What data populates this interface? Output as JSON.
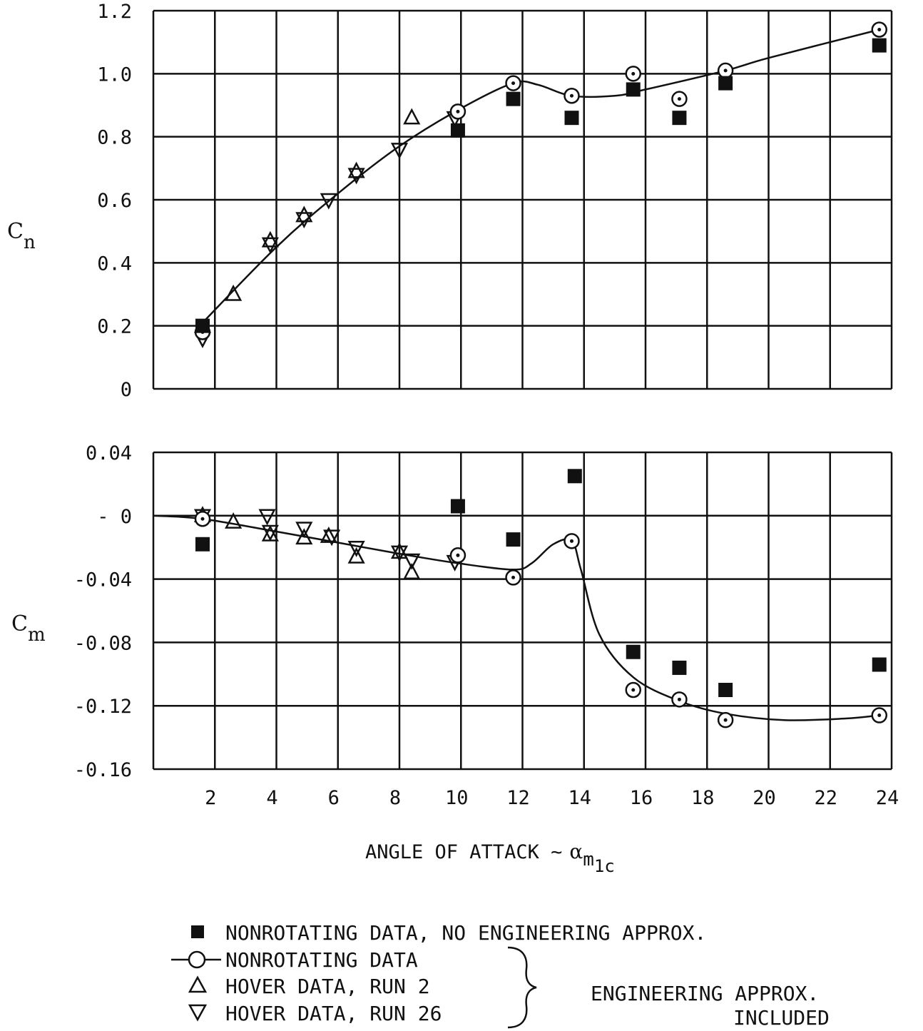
{
  "chart_data": [
    {
      "type": "scatter",
      "panel": "upper",
      "ylabel": "C",
      "ylabel_sub": "n",
      "xlim": [
        0,
        24
      ],
      "ylim": [
        0,
        1.2
      ],
      "grid": true,
      "x_ticks": [
        2,
        4,
        6,
        8,
        10,
        12,
        14,
        16,
        18,
        20,
        22,
        24
      ],
      "y_ticks": [
        {
          "value": 0,
          "label": "0"
        },
        {
          "value": 0.2,
          "label": "0.2"
        },
        {
          "value": 0.4,
          "label": "0.4"
        },
        {
          "value": 0.6,
          "label": "0.6"
        },
        {
          "value": 0.8,
          "label": "0.8"
        },
        {
          "value": 1.0,
          "label": "1.0"
        },
        {
          "value": 1.2,
          "label": "1.2"
        }
      ],
      "series": [
        {
          "name": "NONROTATING DATA, NO ENGINEERING APPROX.",
          "marker": "filled-square",
          "x": [
            1.6,
            9.9,
            11.7,
            13.6,
            15.6,
            17.1,
            18.6,
            23.6
          ],
          "y": [
            0.2,
            0.82,
            0.92,
            0.86,
            0.95,
            0.86,
            0.97,
            1.09
          ]
        },
        {
          "name": "NONROTATING DATA",
          "marker": "dotted-circle",
          "line": true,
          "x": [
            1.6,
            9.9,
            11.7,
            13.6,
            15.6,
            17.1,
            18.6,
            23.6
          ],
          "y": [
            0.18,
            0.88,
            0.97,
            0.93,
            1.0,
            0.92,
            1.01,
            1.14
          ]
        },
        {
          "name": "HOVER DATA, RUN 2",
          "marker": "triangle-up",
          "x": [
            2.6,
            3.8,
            4.9,
            6.6,
            8.4
          ],
          "y": [
            0.3,
            0.47,
            0.55,
            0.69,
            0.86
          ]
        },
        {
          "name": "HOVER DATA, RUN 26",
          "marker": "triangle-down",
          "x": [
            1.6,
            3.8,
            4.9,
            5.7,
            6.6,
            8.0,
            9.8
          ],
          "y": [
            0.16,
            0.46,
            0.54,
            0.6,
            0.68,
            0.76,
            0.86
          ]
        }
      ],
      "fit_curve": {
        "x": [
          1.6,
          4,
          6,
          8,
          10,
          11.7,
          12.5,
          13.6,
          15,
          16,
          18.6,
          20,
          23.6
        ],
        "y": [
          0.21,
          0.45,
          0.62,
          0.77,
          0.89,
          0.97,
          0.965,
          0.93,
          0.93,
          0.95,
          1.01,
          1.05,
          1.14
        ]
      }
    },
    {
      "type": "scatter",
      "panel": "lower",
      "ylabel": "C",
      "ylabel_sub": "m",
      "xlabel": "ANGLE OF ATTACK ~",
      "xlabel_symbol": "α",
      "xlabel_sub": "m",
      "xlabel_subsub": "1c",
      "xlim": [
        0,
        24
      ],
      "ylim": [
        -0.16,
        0.04
      ],
      "grid": true,
      "x_ticks": [
        2,
        4,
        6,
        8,
        10,
        12,
        14,
        16,
        18,
        20,
        22,
        24
      ],
      "y_ticks": [
        {
          "value": 0.04,
          "label": "0.04"
        },
        {
          "value": 0,
          "label": "-  0"
        },
        {
          "value": -0.04,
          "label": "-0.04"
        },
        {
          "value": -0.08,
          "label": "-0.08"
        },
        {
          "value": -0.12,
          "label": "-0.12"
        },
        {
          "value": -0.16,
          "label": "-0.16"
        }
      ],
      "series": [
        {
          "name": "NONROTATING DATA, NO ENGINEERING APPROX.",
          "marker": "filled-square",
          "x": [
            1.6,
            9.9,
            11.7,
            13.7,
            15.6,
            17.1,
            18.6,
            23.6
          ],
          "y": [
            -0.018,
            0.006,
            -0.015,
            0.025,
            -0.086,
            -0.096,
            -0.11,
            -0.094
          ]
        },
        {
          "name": "NONROTATING DATA",
          "marker": "dotted-circle",
          "line": true,
          "x": [
            1.6,
            9.9,
            11.7,
            13.6,
            15.6,
            17.1,
            18.6,
            23.6
          ],
          "y": [
            -0.002,
            -0.025,
            -0.039,
            -0.016,
            -0.11,
            -0.116,
            -0.129,
            -0.126
          ]
        },
        {
          "name": "HOVER DATA, RUN 2",
          "marker": "triangle-up",
          "x": [
            1.6,
            2.6,
            3.8,
            4.9,
            5.7,
            6.6,
            8.0,
            8.4
          ],
          "y": [
            0.0,
            -0.004,
            -0.012,
            -0.014,
            -0.013,
            -0.026,
            -0.023,
            -0.036
          ]
        },
        {
          "name": "HOVER DATA, RUN 26",
          "marker": "triangle-down",
          "x": [
            1.6,
            3.7,
            3.8,
            4.9,
            5.8,
            6.6,
            8.0,
            8.4,
            9.8
          ],
          "y": [
            0.0,
            0.0,
            -0.01,
            -0.008,
            -0.013,
            -0.02,
            -0.023,
            -0.028,
            -0.029
          ]
        }
      ],
      "fit_curve": {
        "x": [
          0,
          1.6,
          4,
          6,
          8,
          9.9,
          11.7,
          12.3,
          13.0,
          13.6,
          13.9,
          14.5,
          15.6,
          17.1,
          18.6,
          20.5,
          22.5,
          23.6
        ],
        "y": [
          0.0,
          -0.002,
          -0.01,
          -0.017,
          -0.024,
          -0.03,
          -0.034,
          -0.03,
          -0.018,
          -0.016,
          -0.034,
          -0.075,
          -0.102,
          -0.117,
          -0.125,
          -0.129,
          -0.128,
          -0.126
        ]
      }
    }
  ],
  "legend": {
    "items": [
      {
        "marker": "filled-square",
        "label": "NONROTATING DATA, NO ENGINEERING APPROX."
      },
      {
        "marker": "line-circle",
        "label": "NONROTATING DATA"
      },
      {
        "marker": "triangle-up",
        "label": "HOVER DATA, RUN 2"
      },
      {
        "marker": "triangle-down",
        "label": "HOVER DATA, RUN 26"
      }
    ],
    "bracket_note_line1": "ENGINEERING APPROX.",
    "bracket_note_line2": "INCLUDED"
  }
}
